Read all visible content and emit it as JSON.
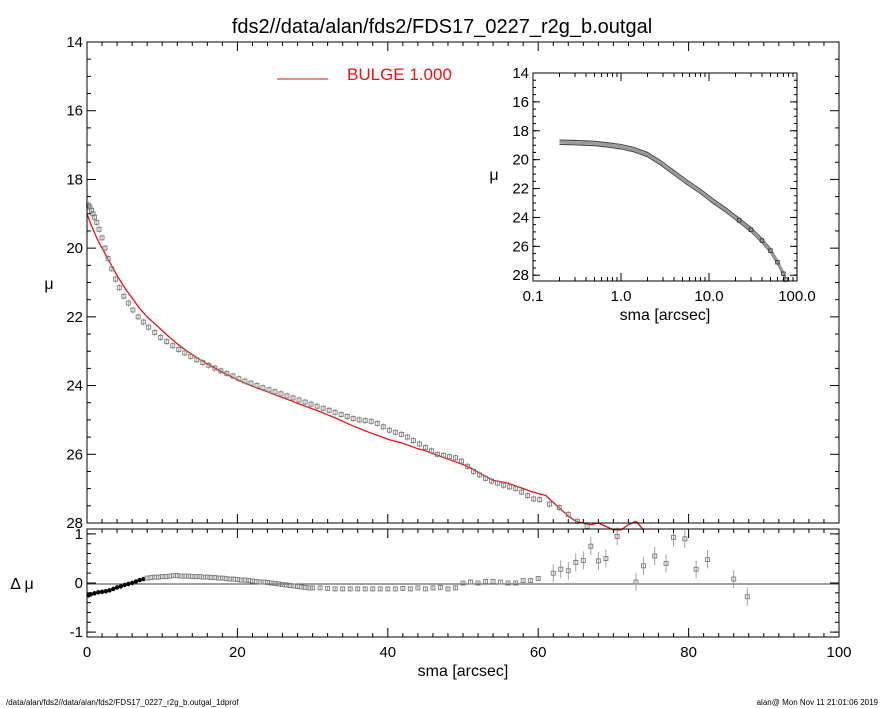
{
  "title": "fds2//data/alan/fds2/FDS17_0227_r2g_b.outgal",
  "footer": {
    "left": "/data/alan/fds2//data/alan/fds2/FDS17_0227_r2g_b.outgal_1dprof",
    "right": "alan@  Mon Nov 11 21:01:06 2019"
  },
  "colors": {
    "model": "#ee1111",
    "data": "#7a7a7a",
    "axes": "#000000"
  },
  "chart_data": [
    {
      "id": "main",
      "type": "scatter",
      "ylabel": "μ",
      "xlim": [
        0,
        100
      ],
      "ylim": [
        28,
        14
      ],
      "y_inverted": true,
      "yticks": [
        "14",
        "16",
        "18",
        "20",
        "22",
        "24",
        "26",
        "28"
      ],
      "legend": {
        "label": "BULGE  1.000",
        "placement": "top-center"
      },
      "series": [
        {
          "name": "data",
          "marker": "square",
          "x": [
            0.2,
            0.4,
            0.6,
            0.8,
            1.0,
            1.3,
            1.6,
            2.0,
            2.4,
            2.8,
            3.3,
            3.8,
            4.3,
            4.9,
            5.5,
            6.1,
            6.8,
            7.5,
            8.2,
            9.0,
            9.8,
            10.6,
            11.4,
            12.2,
            13.0,
            13.8,
            14.6,
            15.4,
            16.2,
            17.0,
            17.8,
            18.6,
            19.4,
            20.2,
            21.0,
            21.8,
            22.6,
            23.4,
            24.2,
            25.0,
            25.8,
            26.6,
            27.4,
            28.2,
            29.0,
            29.8,
            30.6,
            31.4,
            32.2,
            33.0,
            33.8,
            34.6,
            35.4,
            36.2,
            37.0,
            37.8,
            38.6,
            39.4,
            40.2,
            41.0,
            41.8,
            42.6,
            43.4,
            44.2,
            45.0,
            45.8,
            46.6,
            47.4,
            48.2,
            49.0,
            49.8,
            50.6,
            51.4,
            52.2,
            53.0,
            53.8,
            54.6,
            55.4,
            56.2,
            57.0,
            57.8,
            58.6,
            59.4,
            60.2,
            61.5,
            62.8,
            64.0,
            65.2,
            66.5,
            67.8,
            69.0,
            70.2,
            71.5,
            72.8,
            74.0
          ],
          "y": [
            18.75,
            18.8,
            18.9,
            19.0,
            19.1,
            19.25,
            19.45,
            19.7,
            20.0,
            20.3,
            20.6,
            20.9,
            21.15,
            21.4,
            21.6,
            21.8,
            22.0,
            22.15,
            22.3,
            22.45,
            22.6,
            22.72,
            22.84,
            22.95,
            23.05,
            23.15,
            23.25,
            23.33,
            23.41,
            23.49,
            23.57,
            23.65,
            23.72,
            23.8,
            23.87,
            23.93,
            24.0,
            24.06,
            24.12,
            24.18,
            24.24,
            24.3,
            24.36,
            24.42,
            24.48,
            24.54,
            24.6,
            24.66,
            24.72,
            24.78,
            24.84,
            24.9,
            24.96,
            25.0,
            25.02,
            25.04,
            25.1,
            25.2,
            25.3,
            25.36,
            25.42,
            25.5,
            25.6,
            25.7,
            25.8,
            25.9,
            26.0,
            26.03,
            26.07,
            26.1,
            26.2,
            26.35,
            26.5,
            26.6,
            26.7,
            26.78,
            26.84,
            26.9,
            26.95,
            27.0,
            27.1,
            27.2,
            27.3,
            27.32,
            27.45,
            27.55,
            27.75,
            27.95,
            28.1,
            28.25,
            28.4,
            28.55,
            28.65,
            28.75,
            28.8
          ]
        },
        {
          "name": "BULGE  1.000",
          "type": "line",
          "x": [
            0,
            0.5,
            1,
            1.5,
            2,
            3,
            4,
            5,
            6,
            7,
            8,
            9,
            10,
            11,
            12,
            13,
            14,
            15,
            16,
            17,
            18,
            19,
            20,
            21,
            22,
            23,
            24,
            25,
            26,
            27,
            28,
            29,
            30,
            31,
            32,
            33,
            34,
            35,
            36,
            37,
            38,
            39,
            40,
            41,
            42,
            43,
            44,
            45,
            46,
            47,
            48,
            49,
            50,
            51,
            52,
            53,
            54,
            55,
            56,
            57,
            58,
            59,
            60,
            61,
            62,
            63,
            64,
            65,
            66,
            67,
            68,
            69,
            70,
            71,
            72,
            73,
            74
          ],
          "y": [
            19.0,
            19.3,
            19.55,
            19.8,
            20.0,
            20.4,
            20.8,
            21.15,
            21.45,
            21.75,
            22.0,
            22.2,
            22.4,
            22.6,
            22.78,
            22.95,
            23.1,
            23.24,
            23.37,
            23.49,
            23.61,
            23.72,
            23.83,
            23.93,
            24.02,
            24.1,
            24.18,
            24.27,
            24.35,
            24.43,
            24.52,
            24.6,
            24.68,
            24.76,
            24.85,
            24.94,
            25.04,
            25.14,
            25.23,
            25.32,
            25.4,
            25.48,
            25.56,
            25.62,
            25.68,
            25.76,
            25.84,
            25.9,
            25.98,
            26.06,
            26.14,
            26.22,
            26.3,
            26.4,
            26.52,
            26.64,
            26.76,
            26.8,
            26.84,
            26.92,
            27.0,
            27.08,
            27.14,
            27.2,
            27.4,
            27.6,
            27.8,
            27.95,
            28.0,
            28.05,
            28.0,
            28.1,
            28.2,
            28.2,
            28.05,
            27.95,
            28.2
          ]
        }
      ]
    },
    {
      "id": "residuals",
      "type": "scatter",
      "xlabel": "sma [arcsec]",
      "ylabel": "Δ μ",
      "xlim": [
        0,
        100
      ],
      "ylim": [
        -1.1,
        1.1
      ],
      "xticks": [
        "0",
        "20",
        "40",
        "60",
        "80",
        "100"
      ],
      "yticks": [
        "-1",
        "0",
        "1"
      ],
      "series": [
        {
          "name": "residuals",
          "marker": "square",
          "x": [
            0.2,
            0.5,
            1.0,
            1.5,
            2.0,
            2.5,
            3.0,
            3.5,
            4.0,
            4.5,
            5.0,
            5.5,
            6.0,
            6.5,
            7.0,
            7.5,
            8.0,
            8.5,
            9.0,
            9.5,
            10.0,
            10.5,
            11.0,
            11.5,
            12.0,
            12.5,
            13.0,
            13.5,
            14.0,
            14.5,
            15.0,
            15.5,
            16.0,
            16.5,
            17.0,
            17.5,
            18.0,
            18.5,
            19.0,
            19.5,
            20.0,
            20.5,
            21.0,
            21.5,
            22.0,
            22.5,
            23.0,
            23.5,
            24.0,
            24.5,
            25.0,
            25.5,
            26.0,
            26.5,
            27.0,
            27.5,
            28.0,
            28.5,
            29.0,
            29.5,
            30.0,
            31,
            32,
            33,
            34,
            35,
            36,
            37,
            38,
            39,
            40,
            41,
            42,
            43,
            44,
            45,
            46,
            47,
            48,
            49,
            50,
            51,
            52,
            53,
            54,
            55,
            56,
            57,
            58,
            59,
            60,
            62,
            63,
            64,
            65,
            66,
            67,
            68,
            69,
            70.5,
            73,
            74,
            75.5,
            77,
            78,
            79.5,
            81,
            82.5,
            86,
            87.8
          ],
          "y": [
            -0.25,
            -0.23,
            -0.21,
            -0.19,
            -0.18,
            -0.17,
            -0.15,
            -0.12,
            -0.09,
            -0.07,
            -0.04,
            -0.02,
            0.0,
            0.03,
            0.06,
            0.08,
            0.1,
            0.11,
            0.12,
            0.12,
            0.13,
            0.13,
            0.14,
            0.15,
            0.15,
            0.14,
            0.14,
            0.14,
            0.13,
            0.13,
            0.13,
            0.12,
            0.12,
            0.11,
            0.11,
            0.1,
            0.1,
            0.09,
            0.08,
            0.08,
            0.07,
            0.06,
            0.06,
            0.05,
            0.04,
            0.03,
            0.02,
            0.02,
            0.01,
            0.0,
            -0.01,
            -0.02,
            -0.03,
            -0.04,
            -0.05,
            -0.06,
            -0.07,
            -0.08,
            -0.09,
            -0.1,
            -0.1,
            -0.1,
            -0.11,
            -0.12,
            -0.12,
            -0.12,
            -0.12,
            -0.12,
            -0.12,
            -0.12,
            -0.12,
            -0.12,
            -0.11,
            -0.12,
            -0.1,
            -0.12,
            -0.1,
            -0.09,
            -0.12,
            -0.1,
            0.0,
            0.02,
            0.0,
            0.03,
            0.03,
            0.02,
            0.0,
            0.0,
            0.05,
            0.05,
            0.09,
            0.2,
            0.28,
            0.25,
            0.42,
            0.46,
            0.75,
            0.45,
            0.5,
            0.95,
            0.02,
            0.35,
            0.55,
            0.4,
            0.93,
            0.9,
            0.28,
            0.48,
            0.08,
            -0.28
          ]
        }
      ]
    },
    {
      "id": "inset",
      "type": "scatter",
      "xlabel": "sma [arcsec]",
      "ylabel": "μ",
      "x_scale": "log",
      "xlim": [
        0.1,
        100
      ],
      "ylim": [
        28.4,
        14
      ],
      "y_inverted": true,
      "xticks": [
        "0.1",
        "1.0",
        "10.0",
        "100.0"
      ],
      "yticks": [
        "14",
        "16",
        "18",
        "20",
        "22",
        "24",
        "26",
        "28"
      ],
      "series": [
        {
          "name": "data",
          "x": [
            0.2,
            0.3,
            0.5,
            0.7,
            1.0,
            1.4,
            2.0,
            2.8,
            4.0,
            5.6,
            8.0,
            11.0,
            16.0,
            22.0,
            30.0,
            40.0,
            50.0,
            60.0,
            70.0,
            74.0
          ],
          "y": [
            18.8,
            18.82,
            18.88,
            18.98,
            19.1,
            19.3,
            19.65,
            20.2,
            20.9,
            21.55,
            22.2,
            22.85,
            23.55,
            24.2,
            24.85,
            25.6,
            26.3,
            27.1,
            27.9,
            28.3
          ]
        }
      ]
    }
  ]
}
